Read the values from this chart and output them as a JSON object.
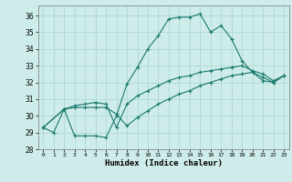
{
  "xlabel": "Humidex (Indice chaleur)",
  "bg_color": "#ceecea",
  "grid_color": "#aed8d4",
  "line_color": "#1a7a6e",
  "xlim": [
    -0.5,
    23.5
  ],
  "ylim": [
    28,
    36.6
  ],
  "xticks": [
    0,
    1,
    2,
    3,
    4,
    5,
    6,
    7,
    8,
    9,
    10,
    11,
    12,
    13,
    14,
    15,
    16,
    17,
    18,
    19,
    20,
    21,
    22,
    23
  ],
  "yticks": [
    28,
    29,
    30,
    31,
    32,
    33,
    34,
    35,
    36
  ],
  "series": [
    {
      "x": [
        0,
        1,
        2,
        3,
        4,
        5,
        6,
        7,
        8,
        9,
        10,
        11,
        12,
        13,
        14,
        15,
        16,
        17,
        18,
        19,
        20,
        21,
        22,
        23
      ],
      "y": [
        29.3,
        29.0,
        30.4,
        28.8,
        28.8,
        28.8,
        28.7,
        30.0,
        31.9,
        32.9,
        34.0,
        34.8,
        35.8,
        35.9,
        35.9,
        36.1,
        35.0,
        35.4,
        34.6,
        33.3,
        32.6,
        32.3,
        32.0,
        32.4
      ]
    },
    {
      "x": [
        0,
        2,
        3,
        4,
        5,
        6,
        7,
        8,
        9,
        10,
        11,
        12,
        13,
        14,
        15,
        16,
        17,
        18,
        19,
        20,
        21,
        22,
        23
      ],
      "y": [
        29.3,
        30.4,
        30.6,
        30.7,
        30.8,
        30.7,
        29.3,
        30.7,
        31.2,
        31.5,
        31.8,
        32.1,
        32.3,
        32.4,
        32.6,
        32.7,
        32.8,
        32.9,
        33.0,
        32.7,
        32.5,
        32.1,
        32.4
      ]
    },
    {
      "x": [
        0,
        2,
        3,
        4,
        5,
        6,
        7,
        8,
        9,
        10,
        11,
        12,
        13,
        14,
        15,
        16,
        17,
        18,
        19,
        20,
        21,
        22,
        23
      ],
      "y": [
        29.3,
        30.4,
        30.5,
        30.5,
        30.5,
        30.5,
        30.1,
        29.4,
        29.9,
        30.3,
        30.7,
        31.0,
        31.3,
        31.5,
        31.8,
        32.0,
        32.2,
        32.4,
        32.5,
        32.6,
        32.1,
        32.0,
        32.4
      ]
    }
  ]
}
